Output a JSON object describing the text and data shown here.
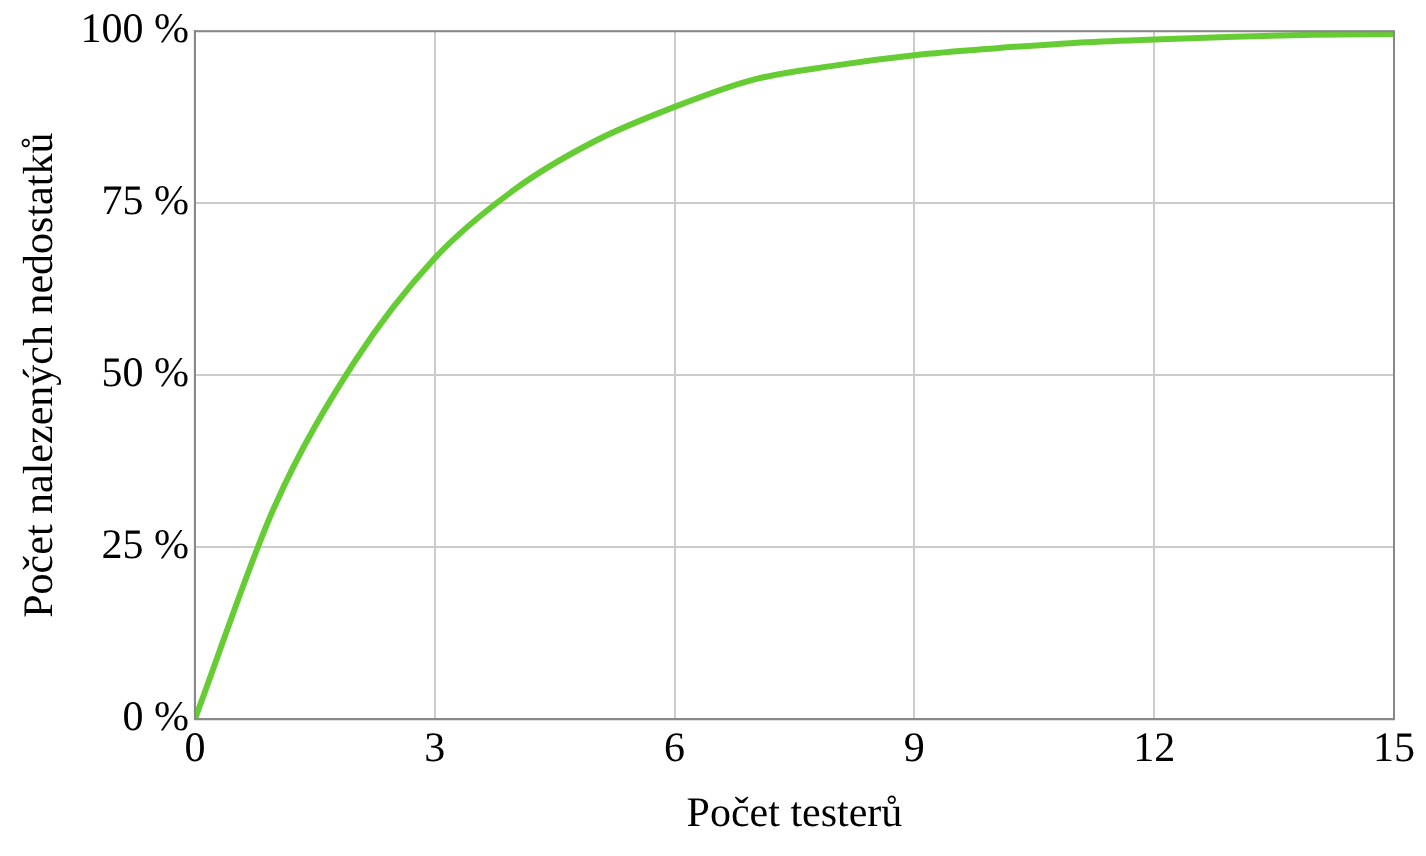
{
  "chart_data": {
    "type": "line",
    "xlabel": "Počet testerů",
    "ylabel": "Počet nalezených nedostatků",
    "x": [
      0,
      1,
      2,
      3,
      4,
      5,
      6,
      7,
      8,
      9,
      10,
      11,
      12,
      13,
      14,
      15
    ],
    "series": [
      {
        "color": "#66cc33",
        "values": [
          0,
          31,
          52,
          67,
          77,
          84,
          89,
          93,
          95,
          96.5,
          97.5,
          98.3,
          98.8,
          99.2,
          99.5,
          99.6
        ]
      }
    ],
    "xlim": [
      0,
      15
    ],
    "xticks": [
      0,
      3,
      6,
      9,
      12,
      15
    ],
    "ylim": [
      0,
      100
    ],
    "yticks": [
      {
        "value": 0,
        "label": "0 %"
      },
      {
        "value": 25,
        "label": "25 %"
      },
      {
        "value": 50,
        "label": "50 %"
      },
      {
        "value": 75,
        "label": "75 %"
      },
      {
        "value": 100,
        "label": "100 %"
      }
    ],
    "grid": true,
    "legend": false,
    "marker": "none",
    "line_style": "solid"
  }
}
